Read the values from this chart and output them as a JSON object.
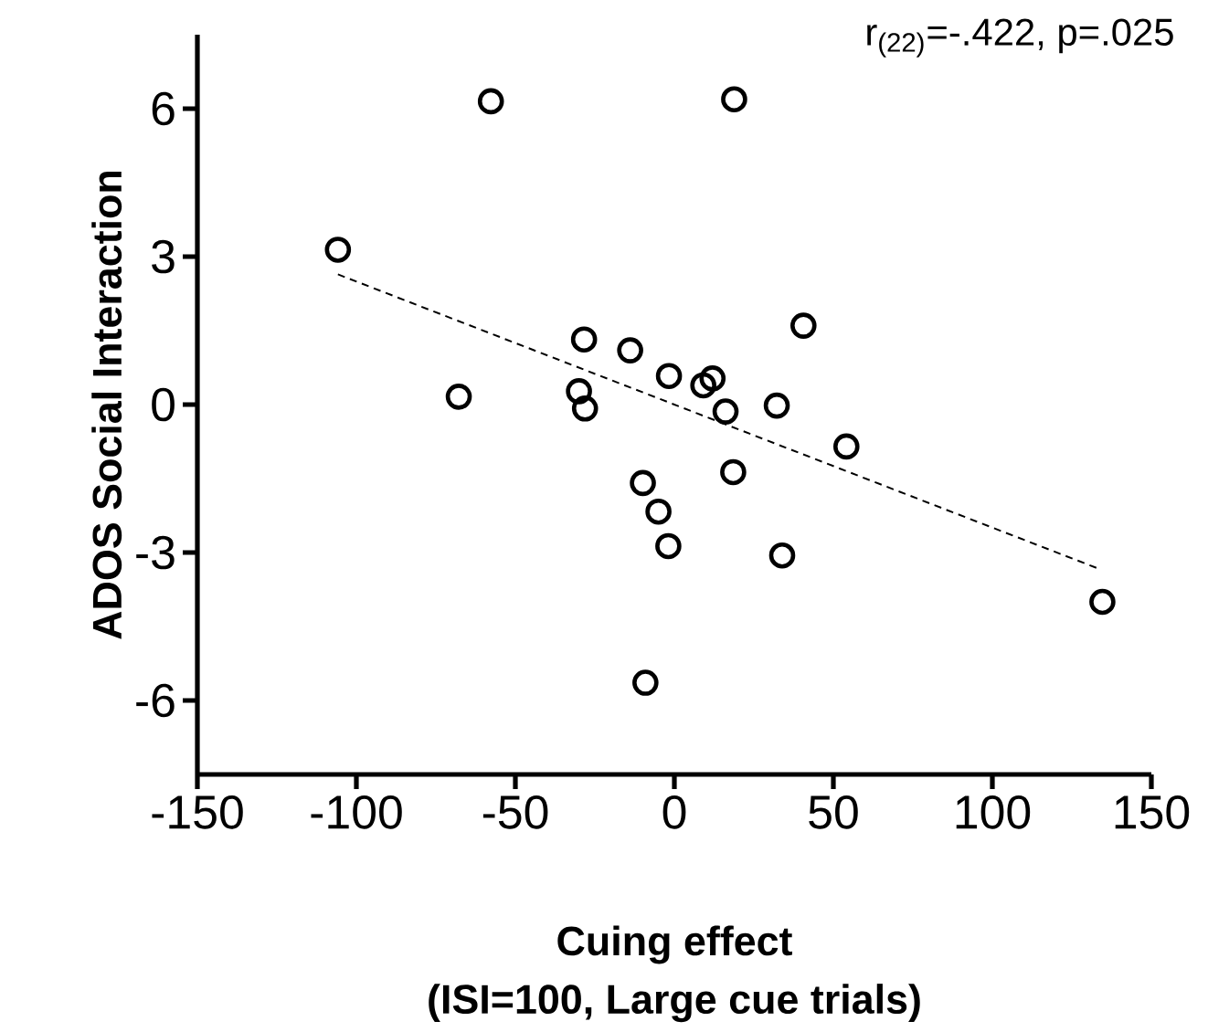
{
  "chart_data": {
    "type": "scatter",
    "xlabel": "Cuing effect (ISI=100, Large cue trials)",
    "ylabel": "ADOS Social Interaction",
    "annotations": [
      "r$_{(22)}$=-.422, p=.025"
    ],
    "xlim": [
      -150,
      150
    ],
    "xticks": [
      -150,
      -100,
      -50,
      0,
      50,
      100,
      150
    ],
    "ylim": [
      -7.5,
      7.5
    ],
    "yticks": [
      -6,
      -3,
      0,
      3,
      6
    ],
    "grid": false,
    "series": [
      {
        "marker": "circle",
        "color": "#000000",
        "x": [
          -105.8,
          -57.7,
          18.8,
          -67.8,
          -28.4,
          -13.9,
          -30,
          -28.1,
          -1.7,
          9.1,
          12,
          16.1,
          32.2,
          40.6,
          54.1,
          18.5,
          -9.9,
          -5,
          -1.9,
          33.9,
          134.6,
          -9.1
        ],
        "values": [
          3.14,
          6.15,
          6.19,
          0.16,
          1.32,
          1.1,
          0.27,
          -0.08,
          0.58,
          0.39,
          0.53,
          -0.14,
          -0.02,
          1.6,
          -0.85,
          -1.37,
          -1.59,
          -2.17,
          -2.87,
          -3.06,
          -4.0,
          -5.64
        ]
      },
      {
        "type": "line",
        "line_style": "dashed",
        "marker": "none",
        "color": "#000000",
        "x": [
          -105.8,
          133.9
        ],
        "values": [
          2.64,
          -3.34
        ]
      }
    ]
  }
}
